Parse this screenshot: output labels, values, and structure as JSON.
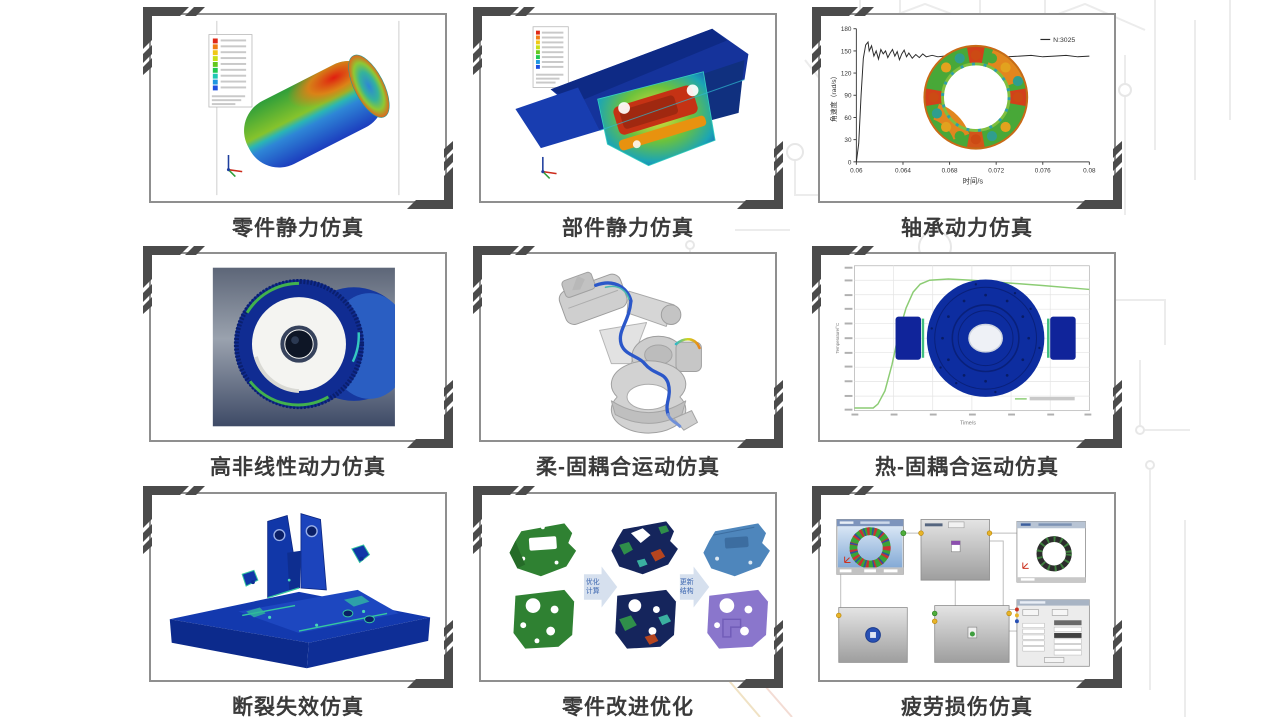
{
  "page": {
    "background": "#ffffff",
    "bracket_color": "#4b4b4b",
    "card_border_color": "#8f8f8f",
    "caption_color": "#3a3a3a"
  },
  "cards": [
    {
      "caption": "零件静力仿真"
    },
    {
      "caption": "部件静力仿真"
    },
    {
      "caption": "轴承动力仿真"
    },
    {
      "caption": "高非线性动力仿真"
    },
    {
      "caption": "柔-固耦合运动仿真"
    },
    {
      "caption": "热-固耦合运动仿真"
    },
    {
      "caption": "断裂失效仿真"
    },
    {
      "caption": "零件改进优化",
      "arrows": [
        {
          "line1": "优化",
          "line2": "计算"
        },
        {
          "line1": "更新",
          "line2": "结构"
        }
      ]
    },
    {
      "caption": "疲劳损伤仿真"
    }
  ],
  "chart_data": [
    {
      "type": "line",
      "panel": "轴承动力仿真",
      "xlabel": "时间/s",
      "ylabel": "角速度（rad/s）",
      "legend": [
        {
          "label": "N:3025",
          "color": "#2a2a2a"
        }
      ],
      "xlim": [
        0.06,
        0.08
      ],
      "ylim": [
        0,
        180
      ],
      "xticks": [
        "0.06",
        "0.064",
        "0.068",
        "0.072",
        "0.076",
        "0.08"
      ],
      "yticks": [
        "0",
        "30",
        "60",
        "90",
        "120",
        "150",
        "180"
      ],
      "grid": false,
      "legend_position": "top-right",
      "series": [
        {
          "name": "N:3025",
          "color": "#2a2a2a",
          "points": [
            [
              0.06,
              0
            ],
            [
              0.0602,
              25
            ],
            [
              0.0604,
              90
            ],
            [
              0.0606,
              140
            ],
            [
              0.0608,
              158
            ],
            [
              0.061,
              162
            ],
            [
              0.0611,
              150
            ],
            [
              0.0613,
              157
            ],
            [
              0.0615,
              143
            ],
            [
              0.0617,
              150
            ],
            [
              0.0619,
              139
            ],
            [
              0.0621,
              152
            ],
            [
              0.0623,
              146
            ],
            [
              0.0625,
              150
            ],
            [
              0.0627,
              141
            ],
            [
              0.0629,
              147
            ],
            [
              0.0631,
              152
            ],
            [
              0.0633,
              143
            ],
            [
              0.0635,
              149
            ],
            [
              0.0637,
              138
            ],
            [
              0.0639,
              146
            ],
            [
              0.0641,
              151
            ],
            [
              0.0643,
              142
            ],
            [
              0.0645,
              147
            ],
            [
              0.0648,
              140
            ],
            [
              0.0651,
              145
            ],
            [
              0.0654,
              141
            ],
            [
              0.0657,
              146
            ],
            [
              0.066,
              142
            ],
            [
              0.0665,
              144
            ],
            [
              0.067,
              142
            ],
            [
              0.0675,
              143
            ],
            [
              0.068,
              142
            ],
            [
              0.069,
              143
            ],
            [
              0.07,
              142
            ],
            [
              0.071,
              143
            ],
            [
              0.072,
              144
            ],
            [
              0.073,
              142
            ],
            [
              0.074,
              143
            ],
            [
              0.075,
              144
            ],
            [
              0.076,
              142
            ],
            [
              0.077,
              143
            ],
            [
              0.078,
              144
            ],
            [
              0.079,
              142
            ],
            [
              0.08,
              143
            ]
          ]
        }
      ]
    },
    {
      "type": "line",
      "panel": "热-固耦合运动仿真",
      "xlabel": "Time/s",
      "ylabel": "Temperature/°C",
      "note": "axis tick labels and legend text are too small to read in source; curve shape estimated from gridlines",
      "xlim": [
        0,
        1
      ],
      "ylim": [
        30,
        31.1
      ],
      "grid": true,
      "legend_position": "bottom-right",
      "series": [
        {
          "name": "temperature",
          "color": "#8ccc74",
          "points": [
            [
              0.0,
              30.02
            ],
            [
              0.08,
              30.02
            ],
            [
              0.1,
              30.05
            ],
            [
              0.13,
              30.15
            ],
            [
              0.16,
              30.35
            ],
            [
              0.19,
              30.6
            ],
            [
              0.22,
              30.78
            ],
            [
              0.25,
              30.9
            ],
            [
              0.28,
              30.96
            ],
            [
              0.32,
              30.99
            ],
            [
              0.4,
              31.0
            ],
            [
              0.5,
              30.99
            ],
            [
              0.65,
              30.97
            ],
            [
              0.8,
              30.95
            ],
            [
              1.0,
              30.92
            ]
          ]
        }
      ]
    }
  ]
}
